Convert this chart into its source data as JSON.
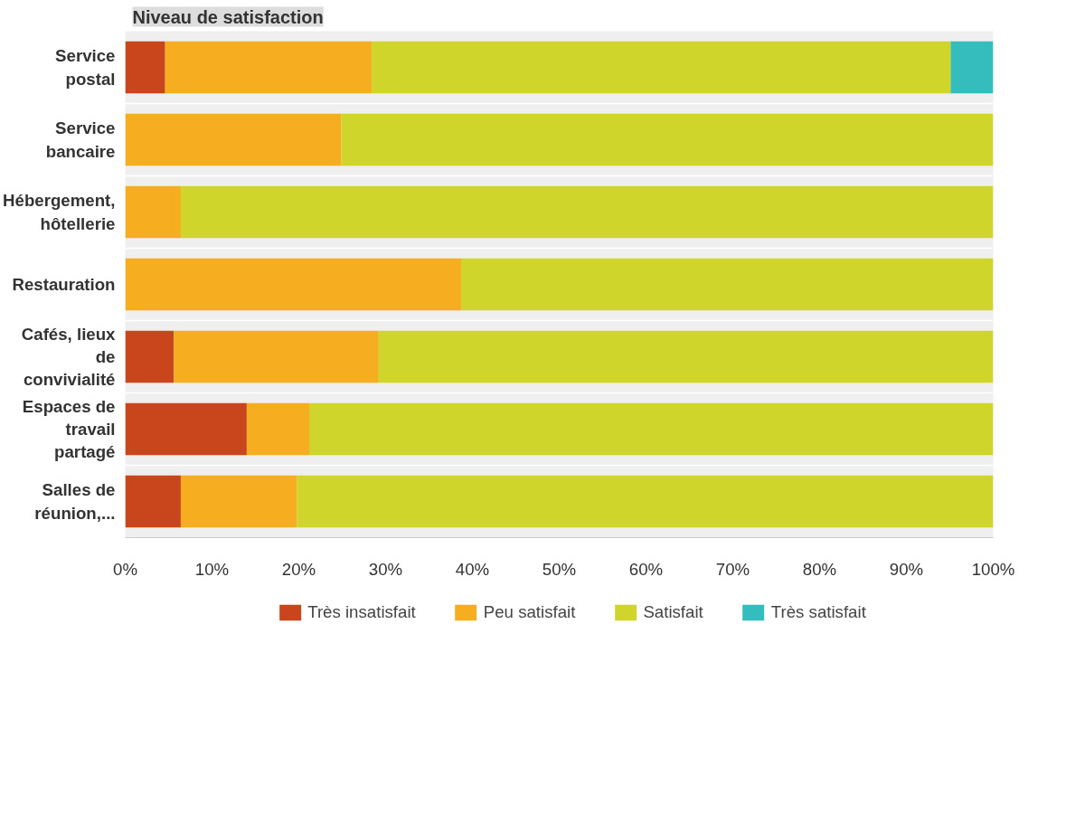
{
  "chart_data": {
    "type": "bar",
    "orientation": "horizontal",
    "stacked": true,
    "title": "Niveau de satisfaction",
    "categories": [
      "Service postal",
      "Service bancaire",
      "Hébergement, hôtellerie",
      "Restauration",
      "Cafés, lieux de convivialité",
      "Espaces de travail partagé",
      "Salles de réunion,..."
    ],
    "series": [
      {
        "name": "Très insatisfait",
        "color": "#c9451c",
        "values": [
          4.6,
          0,
          0,
          0,
          5.6,
          14.0,
          6.4
        ]
      },
      {
        "name": "Peu satisfait",
        "color": "#f6ad1f",
        "values": [
          23.8,
          24.9,
          6.4,
          38.7,
          23.6,
          7.2,
          13.4
        ]
      },
      {
        "name": "Satisfait",
        "color": "#cfd52a",
        "values": [
          66.7,
          75.1,
          93.6,
          61.3,
          70.8,
          78.8,
          80.2
        ]
      },
      {
        "name": "Très satisfait",
        "color": "#35bdbd",
        "values": [
          4.9,
          0,
          0,
          0,
          0,
          0,
          0
        ]
      }
    ],
    "xlim": [
      0,
      100
    ],
    "xticks": [
      {
        "value": 0,
        "label": "0%"
      },
      {
        "value": 10,
        "label": "10%"
      },
      {
        "value": 20,
        "label": "20%"
      },
      {
        "value": 30,
        "label": "30%"
      },
      {
        "value": 40,
        "label": "40%"
      },
      {
        "value": 50,
        "label": "50%"
      },
      {
        "value": 60,
        "label": "60%"
      },
      {
        "value": 70,
        "label": "70%"
      },
      {
        "value": 80,
        "label": "80%"
      },
      {
        "value": 90,
        "label": "90%"
      },
      {
        "value": 100,
        "label": "100%"
      }
    ],
    "grid": false,
    "legend": "bottom"
  }
}
